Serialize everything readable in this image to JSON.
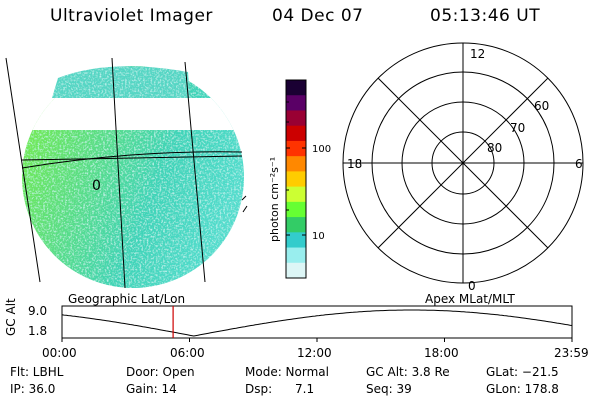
{
  "header": {
    "title": "Ultraviolet Imager",
    "date": "04 Dec 07",
    "time": "05:13:46 UT"
  },
  "map": {
    "grid_label": "0",
    "caption": "Geographic Lat/Lon"
  },
  "colorbar": {
    "unit_label": "photon cm⁻²s⁻¹",
    "ticks": [
      "100",
      "10"
    ],
    "colors": [
      "#1a0033",
      "#5a0066",
      "#990033",
      "#cc0000",
      "#ff3300",
      "#ff8800",
      "#ffcc00",
      "#ccff33",
      "#66ff33",
      "#33cc66",
      "#33cccc",
      "#99eeee",
      "#ddf6f6"
    ]
  },
  "polar": {
    "caption": "Apex MLat/MLT",
    "mlt_labels": {
      "top": "12",
      "bottom": "0",
      "left": "18",
      "right": "6"
    },
    "lat_labels": [
      "60",
      "70",
      "80"
    ]
  },
  "orbit": {
    "ylabel": "GC Alt",
    "ytick_high": "9.0",
    "ytick_low": "1.8",
    "xticks": [
      "00:00",
      "06:00",
      "12:00",
      "18:00",
      "23:59"
    ],
    "current_hour": 5.23
  },
  "status": {
    "row1": [
      {
        "key": "flt",
        "text": "Flt: LBHL"
      },
      {
        "key": "door",
        "text": "Door: Open"
      },
      {
        "key": "mode",
        "text": "Mode: Normal"
      },
      {
        "key": "gcalt",
        "text": "GC Alt: 3.8 Re"
      },
      {
        "key": "glat",
        "text": "GLat: −21.5"
      }
    ],
    "row2": [
      {
        "key": "ip",
        "text": "IP: 36.0"
      },
      {
        "key": "gain",
        "text": "Gain: 14"
      },
      {
        "key": "dsp",
        "text": "Dsp:      7.1"
      },
      {
        "key": "seq",
        "text": "Seq: 39"
      },
      {
        "key": "glon",
        "text": "GLon: 178.8"
      }
    ]
  }
}
